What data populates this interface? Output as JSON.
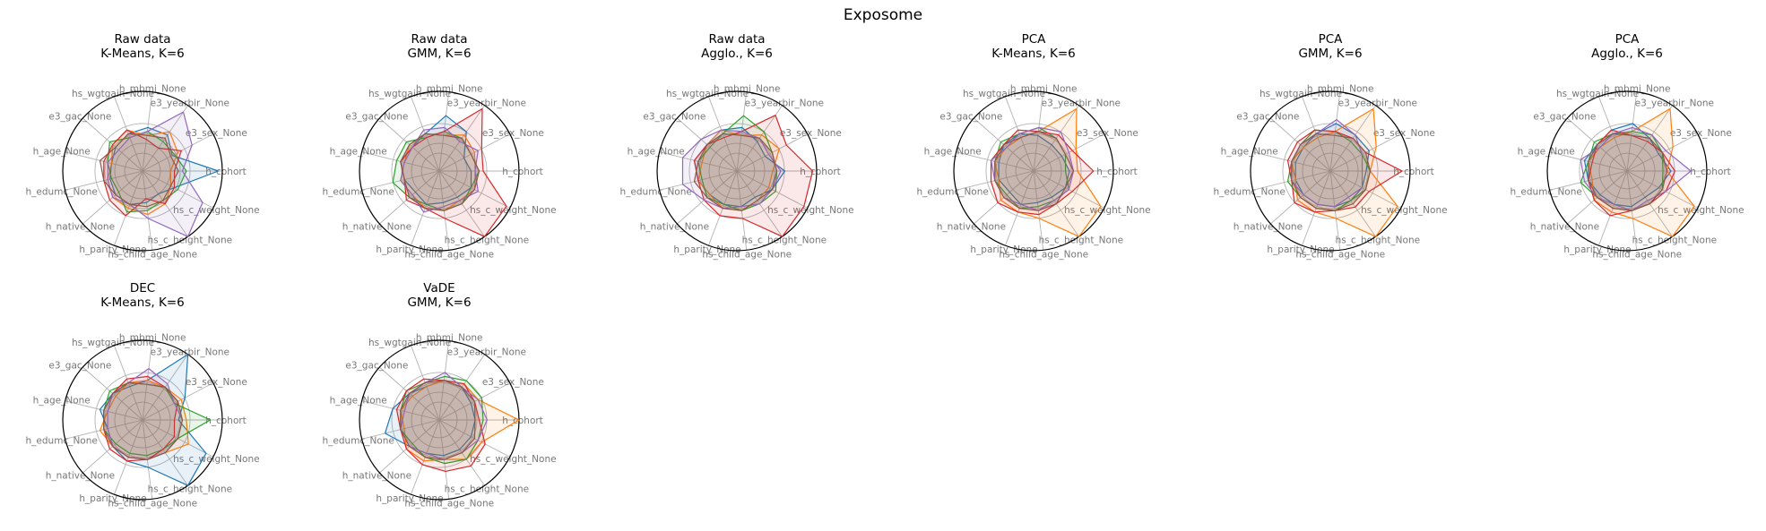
{
  "figure": {
    "suptitle": "Exposome"
  },
  "chart_data": [
    {
      "type": "radar",
      "title": "Raw data\nK-Means, K=6",
      "axes": [
        "h_cohort",
        "e3_sex_None",
        "e3_yearbir_None",
        "h_mbmi_None",
        "hs_wgtgain_None",
        "e3_gac_None",
        "h_age_None",
        "h_edumc_None",
        "h_native_None",
        "h_parity_None",
        "hs_child_age_None",
        "hs_c_height_None",
        "hs_c_weight_None"
      ],
      "series": [
        {
          "color": "#1f77b4",
          "values": [
            0.95,
            0.42,
            0.55,
            0.55,
            0.5,
            0.45,
            0.4,
            0.42,
            0.45,
            0.45,
            0.4,
            0.35,
            0.45
          ]
        },
        {
          "color": "#ff7f0e",
          "values": [
            0.35,
            0.5,
            0.6,
            0.45,
            0.55,
            0.5,
            0.4,
            0.45,
            0.5,
            0.5,
            0.55,
            0.5,
            0.4
          ]
        },
        {
          "color": "#2ca02c",
          "values": [
            0.55,
            0.45,
            0.45,
            0.5,
            0.45,
            0.55,
            0.45,
            0.4,
            0.4,
            0.55,
            0.5,
            0.45,
            0.5
          ]
        },
        {
          "color": "#d62728",
          "values": [
            0.4,
            0.55,
            0.35,
            0.4,
            0.55,
            0.5,
            0.5,
            0.5,
            0.55,
            0.6,
            0.35,
            0.5,
            0.45
          ]
        },
        {
          "color": "#9467bd",
          "values": [
            0.5,
            0.7,
            0.9,
            0.5,
            0.45,
            0.4,
            0.45,
            0.45,
            0.5,
            0.45,
            0.6,
            1.0,
            0.85
          ]
        },
        {
          "color": "#8c564b",
          "values": [
            0.45,
            0.4,
            0.5,
            0.45,
            0.5,
            0.45,
            0.55,
            0.5,
            0.45,
            0.45,
            0.45,
            0.45,
            0.4
          ]
        }
      ]
    },
    {
      "type": "radar",
      "title": "Raw data\nGMM, K=6",
      "axes": [
        "h_cohort",
        "e3_sex_None",
        "e3_yearbir_None",
        "h_mbmi_None",
        "hs_wgtgain_None",
        "e3_gac_None",
        "h_age_None",
        "h_edumc_None",
        "h_native_None",
        "h_parity_None",
        "hs_child_age_None",
        "hs_c_height_None",
        "hs_c_weight_None"
      ],
      "series": [
        {
          "color": "#1f77b4",
          "values": [
            0.4,
            0.35,
            0.6,
            0.7,
            0.5,
            0.45,
            0.5,
            0.45,
            0.4,
            0.45,
            0.4,
            0.4,
            0.45
          ]
        },
        {
          "color": "#ff7f0e",
          "values": [
            0.45,
            0.5,
            0.55,
            0.45,
            0.5,
            0.5,
            0.45,
            0.5,
            0.45,
            0.5,
            0.5,
            0.45,
            0.5
          ]
        },
        {
          "color": "#2ca02c",
          "values": [
            0.5,
            0.45,
            0.5,
            0.5,
            0.45,
            0.55,
            0.55,
            0.6,
            0.5,
            0.45,
            0.5,
            0.5,
            0.45
          ]
        },
        {
          "color": "#d62728",
          "values": [
            0.55,
            0.6,
            0.95,
            0.5,
            0.45,
            0.45,
            0.5,
            0.45,
            0.55,
            0.5,
            0.6,
            1.0,
            0.95
          ]
        },
        {
          "color": "#9467bd",
          "values": [
            0.45,
            0.55,
            0.45,
            0.55,
            0.55,
            0.45,
            0.45,
            0.5,
            0.45,
            0.55,
            0.45,
            0.45,
            0.55
          ]
        },
        {
          "color": "#8c564b",
          "values": [
            0.5,
            0.45,
            0.5,
            0.45,
            0.5,
            0.5,
            0.5,
            0.45,
            0.5,
            0.5,
            0.5,
            0.5,
            0.5
          ]
        }
      ]
    },
    {
      "type": "radar",
      "title": "Raw data\nAgglo., K=6",
      "axes": [
        "h_cohort",
        "e3_sex_None",
        "e3_yearbir_None",
        "h_mbmi_None",
        "hs_wgtgain_None",
        "e3_gac_None",
        "h_age_None",
        "h_edumc_None",
        "h_native_None",
        "h_parity_None",
        "hs_child_age_None",
        "hs_c_height_None",
        "hs_c_weight_None"
      ],
      "series": [
        {
          "color": "#1f77b4",
          "values": [
            0.6,
            0.4,
            0.45,
            0.55,
            0.55,
            0.5,
            0.55,
            0.5,
            0.45,
            0.45,
            0.45,
            0.4,
            0.5
          ]
        },
        {
          "color": "#ff7f0e",
          "values": [
            0.45,
            0.6,
            0.55,
            0.45,
            0.55,
            0.5,
            0.45,
            0.5,
            0.45,
            0.5,
            0.5,
            0.45,
            0.45
          ]
        },
        {
          "color": "#2ca02c",
          "values": [
            0.5,
            0.5,
            0.6,
            0.7,
            0.5,
            0.45,
            0.5,
            0.45,
            0.5,
            0.45,
            0.5,
            0.5,
            0.55
          ]
        },
        {
          "color": "#d62728",
          "values": [
            0.95,
            0.7,
            0.85,
            0.5,
            0.45,
            0.5,
            0.55,
            0.5,
            0.55,
            0.6,
            0.6,
            1.0,
            0.95
          ]
        },
        {
          "color": "#9467bd",
          "values": [
            0.55,
            0.45,
            0.5,
            0.5,
            0.55,
            0.6,
            0.7,
            0.7,
            0.55,
            0.5,
            0.45,
            0.5,
            0.5
          ]
        },
        {
          "color": "#8c564b",
          "values": [
            0.5,
            0.5,
            0.5,
            0.45,
            0.5,
            0.5,
            0.5,
            0.55,
            0.5,
            0.5,
            0.5,
            0.45,
            0.5
          ]
        }
      ]
    },
    {
      "type": "radar",
      "title": "PCA\nK-Means, K=6",
      "axes": [
        "h_cohort",
        "e3_sex_None",
        "e3_yearbir_None",
        "h_mbmi_None",
        "hs_wgtgain_None",
        "e3_gac_None",
        "h_age_None",
        "h_edumc_None",
        "h_native_None",
        "h_parity_None",
        "hs_child_age_None",
        "hs_c_height_None",
        "hs_c_weight_None"
      ],
      "series": [
        {
          "color": "#1f77b4",
          "values": [
            0.45,
            0.4,
            0.4,
            0.45,
            0.5,
            0.5,
            0.45,
            0.45,
            0.4,
            0.45,
            0.4,
            0.4,
            0.45
          ]
        },
        {
          "color": "#ff7f0e",
          "values": [
            0.55,
            0.6,
            0.95,
            0.5,
            0.45,
            0.45,
            0.5,
            0.45,
            0.55,
            0.55,
            0.6,
            1.0,
            0.95
          ]
        },
        {
          "color": "#2ca02c",
          "values": [
            0.4,
            0.45,
            0.5,
            0.55,
            0.5,
            0.55,
            0.5,
            0.5,
            0.45,
            0.5,
            0.45,
            0.45,
            0.5
          ]
        },
        {
          "color": "#d62728",
          "values": [
            0.75,
            0.55,
            0.55,
            0.5,
            0.55,
            0.5,
            0.55,
            0.55,
            0.6,
            0.55,
            0.55,
            0.5,
            0.55
          ]
        },
        {
          "color": "#9467bd",
          "values": [
            0.5,
            0.5,
            0.6,
            0.55,
            0.5,
            0.45,
            0.55,
            0.5,
            0.5,
            0.45,
            0.5,
            0.45,
            0.5
          ]
        },
        {
          "color": "#8c564b",
          "values": [
            0.5,
            0.45,
            0.5,
            0.5,
            0.45,
            0.5,
            0.5,
            0.5,
            0.5,
            0.5,
            0.5,
            0.5,
            0.45
          ]
        }
      ]
    },
    {
      "type": "radar",
      "title": "PCA\nGMM, K=6",
      "axes": [
        "h_cohort",
        "e3_sex_None",
        "e3_yearbir_None",
        "h_mbmi_None",
        "hs_wgtgain_None",
        "e3_gac_None",
        "h_age_None",
        "h_edumc_None",
        "h_native_None",
        "h_parity_None",
        "hs_child_age_None",
        "hs_c_height_None",
        "hs_c_weight_None"
      ],
      "series": [
        {
          "color": "#1f77b4",
          "values": [
            0.45,
            0.55,
            0.55,
            0.6,
            0.5,
            0.45,
            0.45,
            0.45,
            0.45,
            0.45,
            0.45,
            0.45,
            0.45
          ]
        },
        {
          "color": "#ff7f0e",
          "values": [
            0.5,
            0.65,
            0.95,
            0.5,
            0.45,
            0.45,
            0.5,
            0.45,
            0.55,
            0.55,
            0.6,
            1.0,
            0.95
          ]
        },
        {
          "color": "#2ca02c",
          "values": [
            0.5,
            0.45,
            0.45,
            0.5,
            0.55,
            0.5,
            0.5,
            0.55,
            0.5,
            0.5,
            0.5,
            0.45,
            0.5
          ]
        },
        {
          "color": "#d62728",
          "values": [
            0.9,
            0.5,
            0.5,
            0.5,
            0.55,
            0.55,
            0.55,
            0.5,
            0.6,
            0.55,
            0.5,
            0.55,
            0.55
          ]
        },
        {
          "color": "#9467bd",
          "values": [
            0.4,
            0.45,
            0.55,
            0.65,
            0.5,
            0.5,
            0.5,
            0.5,
            0.45,
            0.45,
            0.45,
            0.4,
            0.45
          ]
        },
        {
          "color": "#8c564b",
          "values": [
            0.5,
            0.5,
            0.5,
            0.45,
            0.5,
            0.5,
            0.5,
            0.5,
            0.5,
            0.5,
            0.5,
            0.5,
            0.5
          ]
        }
      ]
    },
    {
      "type": "radar",
      "title": "PCA\nAgglo., K=6",
      "axes": [
        "h_cohort",
        "e3_sex_None",
        "e3_yearbir_None",
        "h_mbmi_None",
        "hs_wgtgain_None",
        "e3_gac_None",
        "h_age_None",
        "h_edumc_None",
        "h_native_None",
        "h_parity_None",
        "hs_child_age_None",
        "hs_c_height_None",
        "hs_c_weight_None"
      ],
      "series": [
        {
          "color": "#1f77b4",
          "values": [
            0.55,
            0.45,
            0.5,
            0.6,
            0.55,
            0.5,
            0.55,
            0.5,
            0.45,
            0.45,
            0.45,
            0.4,
            0.45
          ]
        },
        {
          "color": "#ff7f0e",
          "values": [
            0.5,
            0.65,
            0.95,
            0.5,
            0.45,
            0.45,
            0.5,
            0.45,
            0.55,
            0.55,
            0.6,
            1.0,
            0.95
          ]
        },
        {
          "color": "#2ca02c",
          "values": [
            0.45,
            0.5,
            0.55,
            0.5,
            0.5,
            0.55,
            0.5,
            0.6,
            0.5,
            0.5,
            0.5,
            0.5,
            0.5
          ]
        },
        {
          "color": "#d62728",
          "values": [
            0.6,
            0.5,
            0.45,
            0.45,
            0.55,
            0.5,
            0.45,
            0.5,
            0.55,
            0.6,
            0.5,
            0.5,
            0.55
          ]
        },
        {
          "color": "#9467bd",
          "values": [
            0.8,
            0.55,
            0.55,
            0.55,
            0.5,
            0.45,
            0.6,
            0.55,
            0.5,
            0.45,
            0.5,
            0.45,
            0.55
          ]
        },
        {
          "color": "#8c564b",
          "values": [
            0.5,
            0.5,
            0.5,
            0.45,
            0.5,
            0.5,
            0.5,
            0.5,
            0.5,
            0.5,
            0.5,
            0.5,
            0.5
          ]
        }
      ]
    },
    {
      "type": "radar",
      "title": "DEC\nK-Means, K=6",
      "axes": [
        "h_cohort",
        "e3_sex_None",
        "e3_yearbir_None",
        "h_mbmi_None",
        "hs_wgtgain_None",
        "e3_gac_None",
        "h_age_None",
        "h_edumc_None",
        "h_native_None",
        "h_parity_None",
        "hs_child_age_None",
        "hs_c_height_None",
        "hs_c_weight_None"
      ],
      "series": [
        {
          "color": "#1f77b4",
          "values": [
            0.45,
            0.6,
            1.0,
            0.5,
            0.45,
            0.5,
            0.55,
            0.45,
            0.5,
            0.55,
            0.6,
            1.0,
            0.9
          ]
        },
        {
          "color": "#ff7f0e",
          "values": [
            0.55,
            0.55,
            0.5,
            0.5,
            0.5,
            0.45,
            0.45,
            0.55,
            0.5,
            0.5,
            0.5,
            0.5,
            0.65
          ]
        },
        {
          "color": "#2ca02c",
          "values": [
            0.85,
            0.45,
            0.5,
            0.45,
            0.5,
            0.55,
            0.5,
            0.5,
            0.45,
            0.45,
            0.45,
            0.45,
            0.5
          ]
        },
        {
          "color": "#d62728",
          "values": [
            0.4,
            0.5,
            0.5,
            0.55,
            0.55,
            0.5,
            0.5,
            0.5,
            0.55,
            0.55,
            0.5,
            0.45,
            0.45
          ]
        },
        {
          "color": "#9467bd",
          "values": [
            0.5,
            0.45,
            0.55,
            0.65,
            0.5,
            0.5,
            0.45,
            0.45,
            0.5,
            0.5,
            0.5,
            0.5,
            0.5
          ]
        },
        {
          "color": "#8c564b",
          "values": [
            0.5,
            0.5,
            0.5,
            0.45,
            0.5,
            0.5,
            0.5,
            0.5,
            0.5,
            0.5,
            0.5,
            0.5,
            0.5
          ]
        }
      ]
    },
    {
      "type": "radar",
      "title": "VaDE\nGMM, K=6",
      "axes": [
        "h_cohort",
        "e3_sex_None",
        "e3_yearbir_None",
        "h_mbmi_None",
        "hs_wgtgain_None",
        "e3_gac_None",
        "h_age_None",
        "h_edumc_None",
        "h_native_None",
        "h_parity_None",
        "hs_child_age_None",
        "hs_c_height_None",
        "hs_c_weight_None"
      ],
      "series": [
        {
          "color": "#1f77b4",
          "values": [
            0.45,
            0.45,
            0.5,
            0.5,
            0.45,
            0.5,
            0.6,
            0.7,
            0.5,
            0.45,
            0.45,
            0.45,
            0.45
          ]
        },
        {
          "color": "#ff7f0e",
          "values": [
            1.0,
            0.55,
            0.55,
            0.5,
            0.45,
            0.45,
            0.5,
            0.45,
            0.55,
            0.55,
            0.5,
            0.6,
            0.6
          ]
        },
        {
          "color": "#2ca02c",
          "values": [
            0.55,
            0.6,
            0.6,
            0.55,
            0.5,
            0.55,
            0.5,
            0.5,
            0.45,
            0.5,
            0.55,
            0.6,
            0.55
          ]
        },
        {
          "color": "#d62728",
          "values": [
            0.5,
            0.5,
            0.55,
            0.5,
            0.55,
            0.55,
            0.55,
            0.5,
            0.55,
            0.6,
            0.65,
            0.7,
            0.65
          ]
        },
        {
          "color": "#9467bd",
          "values": [
            0.6,
            0.55,
            0.5,
            0.6,
            0.5,
            0.5,
            0.45,
            0.5,
            0.5,
            0.45,
            0.5,
            0.5,
            0.55
          ]
        },
        {
          "color": "#8c564b",
          "values": [
            0.45,
            0.5,
            0.5,
            0.5,
            0.5,
            0.5,
            0.5,
            0.5,
            0.5,
            0.5,
            0.5,
            0.5,
            0.5
          ]
        }
      ]
    }
  ]
}
